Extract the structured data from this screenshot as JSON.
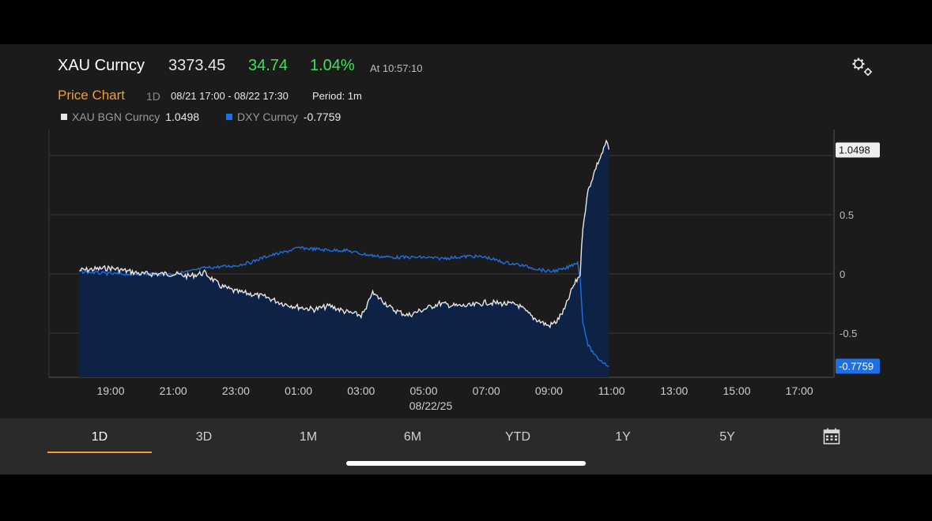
{
  "header": {
    "ticker": "XAU Curncy",
    "price": "3373.45",
    "change": "34.74",
    "change_pct": "1.04%",
    "as_of": "At 10:57:10",
    "settings_icon": "gear-icon"
  },
  "chart_header": {
    "title": "Price Chart",
    "period_code": "1D",
    "range": "08/21 17:00 - 08/22 17:30",
    "period": "Period: 1m"
  },
  "legend": [
    {
      "name": "XAU BGN Curncy",
      "value": "1.0498",
      "color": "#e6e6e6"
    },
    {
      "name": "DXY Curncy",
      "value": "-0.7759",
      "color": "#1f6fe0"
    }
  ],
  "chart_data": {
    "type": "line",
    "x_ticks": [
      "19:00",
      "21:00",
      "23:00",
      "01:00",
      "03:00",
      "05:00",
      "07:00",
      "09:00",
      "11:00",
      "13:00",
      "15:00",
      "17:00"
    ],
    "x_sublabel": "08/22/25",
    "y_ticks": [
      "0.5",
      "0",
      "-0.5"
    ],
    "ylim": [
      -0.9,
      1.25
    ],
    "grid": true,
    "series": [
      {
        "name": "XAU BGN Curncy",
        "color": "#e6e6e6",
        "fill": "#0d2245",
        "last_label": "1.0498",
        "points": [
          [
            "18:00",
            0.03
          ],
          [
            "19:00",
            0.05
          ],
          [
            "20:00",
            0.0
          ],
          [
            "21:00",
            0.0
          ],
          [
            "21:30",
            -0.02
          ],
          [
            "22:00",
            0.01
          ],
          [
            "22:30",
            -0.1
          ],
          [
            "23:00",
            -0.15
          ],
          [
            "23:30",
            -0.17
          ],
          [
            "00:00",
            -0.2
          ],
          [
            "00:30",
            -0.25
          ],
          [
            "01:00",
            -0.28
          ],
          [
            "01:30",
            -0.3
          ],
          [
            "02:00",
            -0.27
          ],
          [
            "02:30",
            -0.32
          ],
          [
            "03:00",
            -0.35
          ],
          [
            "03:10",
            -0.3
          ],
          [
            "03:20",
            -0.16
          ],
          [
            "03:40",
            -0.22
          ],
          [
            "04:00",
            -0.3
          ],
          [
            "04:30",
            -0.35
          ],
          [
            "05:00",
            -0.3
          ],
          [
            "05:30",
            -0.25
          ],
          [
            "06:00",
            -0.27
          ],
          [
            "06:30",
            -0.27
          ],
          [
            "07:00",
            -0.24
          ],
          [
            "07:30",
            -0.25
          ],
          [
            "08:00",
            -0.26
          ],
          [
            "08:30",
            -0.37
          ],
          [
            "09:00",
            -0.44
          ],
          [
            "09:15",
            -0.4
          ],
          [
            "09:30",
            -0.3
          ],
          [
            "09:45",
            -0.12
          ],
          [
            "10:00",
            0.0
          ],
          [
            "10:05",
            0.4
          ],
          [
            "10:15",
            0.7
          ],
          [
            "10:30",
            0.9
          ],
          [
            "10:45",
            1.05
          ],
          [
            "10:50",
            1.12
          ],
          [
            "10:55",
            1.05
          ]
        ]
      },
      {
        "name": "DXY Curncy",
        "color": "#1f6fe0",
        "last_label": "-0.7759",
        "points": [
          [
            "18:00",
            0.02
          ],
          [
            "19:00",
            0.0
          ],
          [
            "20:00",
            0.0
          ],
          [
            "21:00",
            0.0
          ],
          [
            "21:30",
            0.02
          ],
          [
            "22:00",
            0.05
          ],
          [
            "22:30",
            0.06
          ],
          [
            "23:00",
            0.07
          ],
          [
            "23:30",
            0.1
          ],
          [
            "00:00",
            0.15
          ],
          [
            "00:30",
            0.18
          ],
          [
            "01:00",
            0.22
          ],
          [
            "01:30",
            0.21
          ],
          [
            "02:00",
            0.2
          ],
          [
            "02:30",
            0.2
          ],
          [
            "03:00",
            0.17
          ],
          [
            "03:30",
            0.15
          ],
          [
            "04:00",
            0.14
          ],
          [
            "04:30",
            0.14
          ],
          [
            "05:00",
            0.14
          ],
          [
            "05:30",
            0.13
          ],
          [
            "06:00",
            0.14
          ],
          [
            "06:30",
            0.15
          ],
          [
            "07:00",
            0.14
          ],
          [
            "07:30",
            0.1
          ],
          [
            "08:00",
            0.08
          ],
          [
            "08:30",
            0.05
          ],
          [
            "09:00",
            0.02
          ],
          [
            "09:30",
            0.04
          ],
          [
            "09:55",
            0.1
          ],
          [
            "10:00",
            -0.05
          ],
          [
            "10:05",
            -0.4
          ],
          [
            "10:15",
            -0.6
          ],
          [
            "10:30",
            -0.7
          ],
          [
            "10:45",
            -0.75
          ],
          [
            "10:55",
            -0.78
          ]
        ]
      }
    ]
  },
  "tabs": [
    {
      "label": "1D",
      "active": true
    },
    {
      "label": "3D"
    },
    {
      "label": "1M"
    },
    {
      "label": "6M"
    },
    {
      "label": "YTD"
    },
    {
      "label": "1Y"
    },
    {
      "label": "5Y"
    }
  ],
  "calendar_icon": "calendar-icon"
}
